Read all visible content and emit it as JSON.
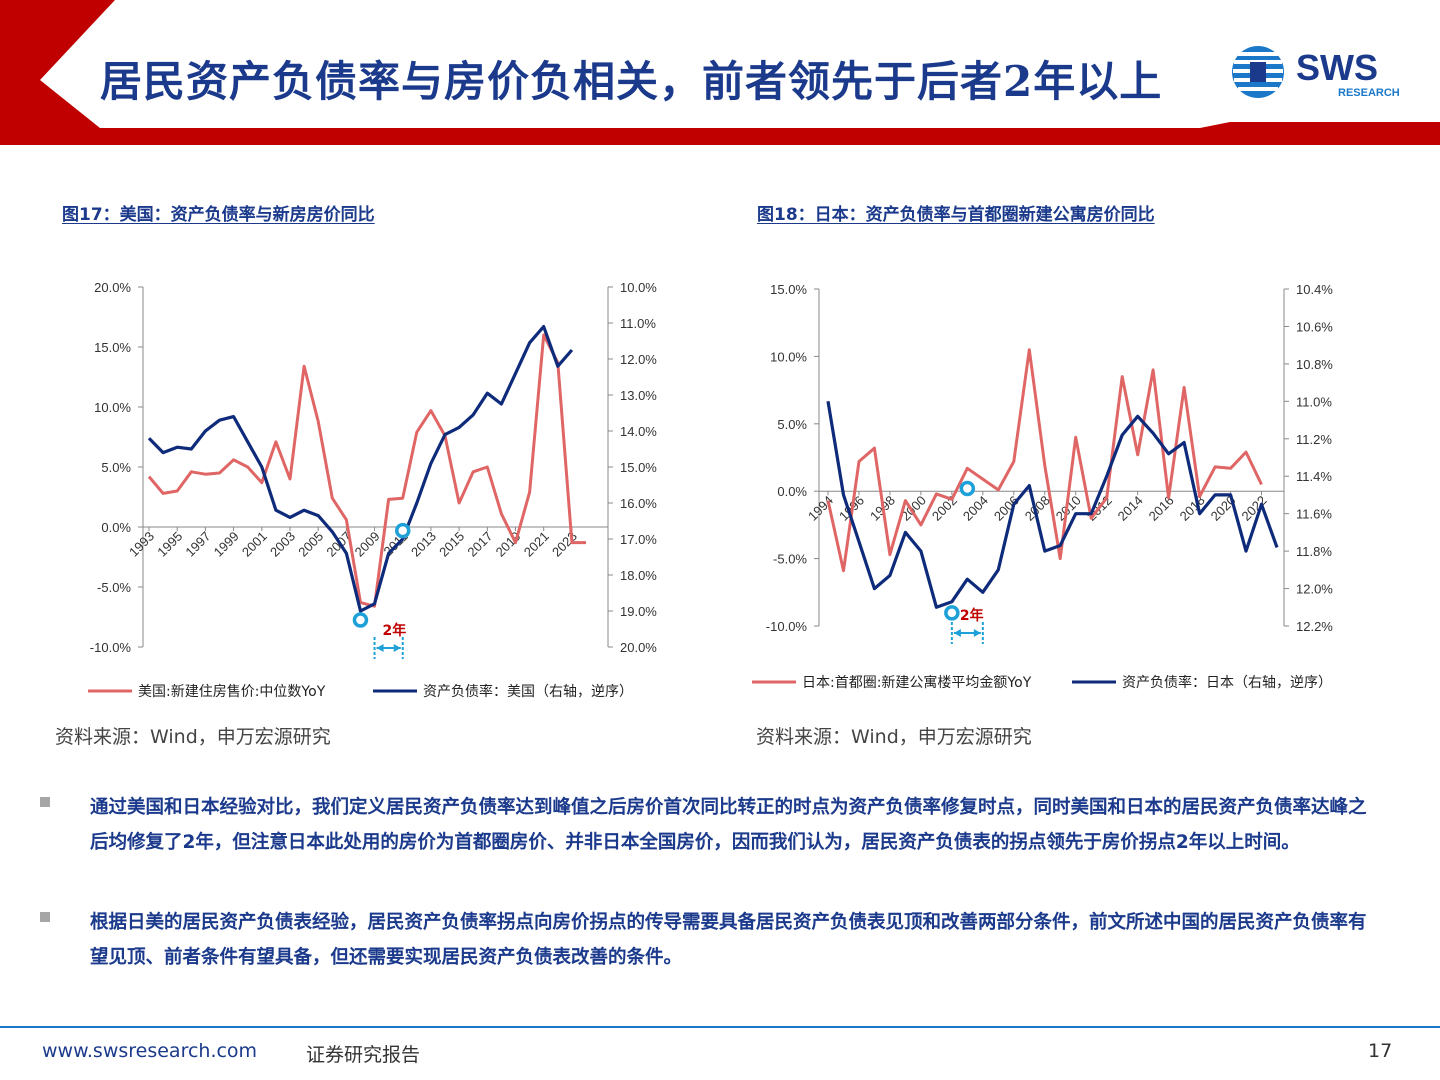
{
  "header": {
    "title": "居民资产负债率与房价负相关，前者领先于后者2年以上",
    "logo_text": "SWS",
    "logo_subtext": "RESEARCH"
  },
  "charts": {
    "us": {
      "title": "图17：美国：资产负债率与新房房价同比",
      "source": "资料来源：Wind，申万宏源研究"
    },
    "jp": {
      "title": "图18：日本：资产负债率与首都圈新建公寓房价同比",
      "source": "资料来源：Wind，申万宏源研究"
    }
  },
  "chart_data": [
    {
      "type": "line",
      "title": "图17：美国：资产负债率与新房房价同比",
      "x": [
        1993,
        1994,
        1995,
        1996,
        1997,
        1998,
        1999,
        2000,
        2001,
        2002,
        2003,
        2004,
        2005,
        2006,
        2007,
        2008,
        2009,
        2010,
        2011,
        2012,
        2013,
        2014,
        2015,
        2016,
        2017,
        2018,
        2019,
        2020,
        2021,
        2022,
        2023,
        2024
      ],
      "x_tick_labels": [
        "1993",
        "1995",
        "1997",
        "1999",
        "2001",
        "2003",
        "2005",
        "2007",
        "2009",
        "2011",
        "2013",
        "2015",
        "2017",
        "2019",
        "2021",
        "2023"
      ],
      "series": [
        {
          "name": "美国:新建住房售价:中位数YoY",
          "axis": "left",
          "color": "#e06666",
          "values": [
            4.2,
            2.8,
            3.0,
            4.6,
            4.4,
            4.5,
            5.6,
            5.0,
            3.7,
            7.1,
            4.0,
            13.4,
            8.8,
            2.4,
            0.6,
            -6.3,
            -6.6,
            2.3,
            2.4,
            7.9,
            9.7,
            7.6,
            2.0,
            4.6,
            5.0,
            1.1,
            -1.3,
            2.9,
            16.0,
            13.7,
            -1.3,
            -1.3
          ]
        },
        {
          "name": "资产负债率：美国（右轴，逆序）",
          "axis": "right",
          "color": "#0e2a7a",
          "values": [
            14.2,
            14.6,
            14.45,
            14.5,
            14.0,
            13.7,
            13.6,
            14.3,
            15.0,
            16.2,
            16.4,
            16.2,
            16.35,
            16.8,
            17.4,
            19.0,
            18.8,
            17.4,
            17.0,
            16.0,
            14.9,
            14.1,
            13.9,
            13.55,
            12.95,
            13.25,
            12.4,
            11.55,
            11.1,
            12.2,
            11.75,
            null
          ]
        }
      ],
      "left_axis": {
        "range": [
          -10,
          20
        ],
        "tick_labels": [
          "20.0%",
          "15.0%",
          "10.0%",
          "5.0%",
          "0.0%",
          "-5.0%",
          "-10.0%"
        ]
      },
      "right_axis": {
        "range": [
          10,
          20
        ],
        "inverted": true,
        "tick_labels": [
          "10.0%",
          "11.0%",
          "12.0%",
          "13.0%",
          "14.0%",
          "15.0%",
          "16.0%",
          "17.0%",
          "18.0%",
          "19.0%",
          "20.0%"
        ]
      },
      "annotations": [
        {
          "text": "2年",
          "from_year": 2009,
          "to_year": 2011
        },
        {
          "marker": "circle",
          "series": "资产负债率：美国（右轴，逆序）",
          "year": 2008,
          "value": 19.25
        },
        {
          "marker": "circle",
          "series": "美国:新建住房售价:中位数YoY",
          "year": 2011,
          "value": -0.3
        }
      ],
      "legend_position": "bottom"
    },
    {
      "type": "line",
      "title": "图18：日本：资产负债率与首都圈新建公寓房价同比",
      "x": [
        1994,
        1995,
        1996,
        1997,
        1998,
        1999,
        2000,
        2001,
        2002,
        2003,
        2004,
        2005,
        2006,
        2007,
        2008,
        2009,
        2010,
        2011,
        2012,
        2013,
        2014,
        2015,
        2016,
        2017,
        2018,
        2019,
        2020,
        2021,
        2022,
        2023
      ],
      "x_tick_labels": [
        "1994",
        "1996",
        "1998",
        "2000",
        "2002",
        "2004",
        "2006",
        "2008",
        "2010",
        "2012",
        "2014",
        "2016",
        "2018",
        "2020",
        "2022"
      ],
      "series": [
        {
          "name": "日本:首都圈:新建公寓楼平均金额YoY",
          "axis": "left",
          "color": "#e06666",
          "values": [
            -0.7,
            -5.9,
            2.2,
            3.2,
            -4.7,
            -0.7,
            -2.5,
            -0.2,
            -0.6,
            1.7,
            0.9,
            0.1,
            2.2,
            10.5,
            1.9,
            -5.0,
            4.0,
            -2.0,
            -0.5,
            8.5,
            2.7,
            9.0,
            -0.5,
            7.7,
            -0.4,
            1.8,
            1.7,
            2.9,
            0.5,
            null
          ]
        },
        {
          "name": "资产负债率：日本（右轴，逆序）",
          "axis": "right",
          "color": "#0e2a7a",
          "values": [
            11.0,
            11.5,
            11.75,
            12.0,
            11.93,
            11.7,
            11.8,
            12.1,
            12.07,
            11.95,
            12.02,
            11.9,
            11.55,
            11.45,
            11.8,
            11.77,
            11.6,
            11.6,
            11.4,
            11.18,
            11.08,
            11.17,
            11.28,
            11.22,
            11.6,
            11.5,
            11.5,
            11.8,
            11.55,
            11.78
          ]
        }
      ],
      "left_axis": {
        "range": [
          -10,
          15
        ],
        "tick_labels": [
          "15.0%",
          "10.0%",
          "5.0%",
          "0.0%",
          "-5.0%",
          "-10.0%"
        ]
      },
      "right_axis": {
        "range": [
          10.4,
          12.2
        ],
        "inverted": true,
        "tick_labels": [
          "10.4%",
          "10.6%",
          "10.8%",
          "11.0%",
          "11.2%",
          "11.4%",
          "11.6%",
          "11.8%",
          "12.0%",
          "12.2%"
        ]
      },
      "annotations": [
        {
          "text": "2年",
          "from_year": 2002,
          "to_year": 2004
        },
        {
          "marker": "circle",
          "series": "资产负债率：日本（右轴，逆序）",
          "year": 2002,
          "value": 12.13
        },
        {
          "marker": "circle",
          "series": "日本:首都圈:新建公寓楼平均金额YoY",
          "year": 2003,
          "value": 0.2
        }
      ],
      "legend_position": "bottom"
    }
  ],
  "bullets": [
    "通过美国和日本经验对比，我们定义居民资产负债率达到峰值之后房价首次同比转正的时点为资产负债率修复时点，同时美国和日本的居民资产负债率达峰之后均修复了2年，但注意日本此处用的房价为首都圈房价、并非日本全国房价，因而我们认为，居民资产负债表的拐点领先于房价拐点2年以上时间。",
    "根据日美的居民资产负债表经验，居民资产负债率拐点向房价拐点的传导需要具备居民资产负债表见顶和改善两部分条件，前文所述中国的居民资产负债率有望见顶、前者条件有望具备，但还需要实现居民资产负债表改善的条件。"
  ],
  "footer": {
    "url": "www.swsresearch.com",
    "label": "证券研究报告",
    "page": "17"
  },
  "colors": {
    "brand_blue": "#1b3a8c",
    "accent_red": "#c00000",
    "highlight_cyan": "#1ea0d8"
  }
}
